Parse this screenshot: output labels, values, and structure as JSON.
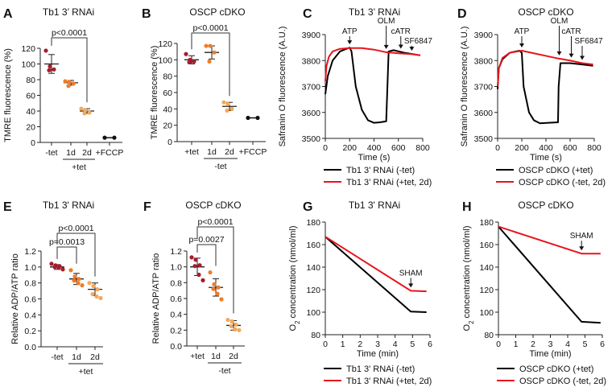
{
  "chart_data": [
    {
      "panel": "A",
      "type": "scatter",
      "title": "Tb1 3’ RNAi",
      "ylabel": "TMRE fluorescence (%)",
      "ylim": [
        0,
        120
      ],
      "yticks": [
        0,
        20,
        40,
        60,
        80,
        100,
        120
      ],
      "categories": [
        "-tet",
        "1d",
        "2d",
        "+FCCP"
      ],
      "group_label": {
        "text": "+tet",
        "span": [
          1,
          2
        ]
      },
      "groups": [
        {
          "values": [
            117,
            97,
            93,
            92
          ],
          "mean": 100,
          "sd": 12,
          "color": "#a51d2d"
        },
        {
          "values": [
            78,
            77,
            75,
            72
          ],
          "mean": 76,
          "sd": 3,
          "color": "#f07c28"
        },
        {
          "values": [
            43,
            41,
            38,
            37
          ],
          "mean": 40,
          "sd": 3,
          "color": "#f5a85a"
        },
        {
          "values": [
            6,
            6
          ],
          "mean": 6,
          "sd": 0,
          "color": "#111111",
          "connected": true
        }
      ],
      "significance": [
        {
          "from": 0,
          "to": 2,
          "label": "p<0.0001"
        }
      ]
    },
    {
      "panel": "B",
      "type": "scatter",
      "title": "OSCP cDKO",
      "ylabel": "TMRE fluorescence (%)",
      "ylim": [
        0,
        120
      ],
      "yticks": [
        0,
        20,
        40,
        60,
        80,
        100,
        120
      ],
      "categories": [
        "+tet",
        "1d",
        "2d",
        "+FCCP"
      ],
      "group_label": {
        "text": "-tet",
        "span": [
          1,
          2
        ]
      },
      "groups": [
        {
          "values": [
            107,
            100,
            98,
            97
          ],
          "mean": 100,
          "sd": 5,
          "color": "#a51d2d"
        },
        {
          "values": [
            117,
            117,
            109,
            98
          ],
          "mean": 109,
          "sd": 8,
          "color": "#f07c28"
        },
        {
          "values": [
            48,
            46,
            40,
            38
          ],
          "mean": 43,
          "sd": 5,
          "color": "#f5a85a"
        },
        {
          "values": [
            29,
            29
          ],
          "mean": 29,
          "sd": 0,
          "color": "#111111",
          "connected": true
        }
      ],
      "significance": [
        {
          "from": 0,
          "to": 2,
          "label": "p<0.0001"
        }
      ]
    },
    {
      "panel": "C",
      "type": "line",
      "title": "Tb1 3’ RNAi",
      "xlabel": "Time (s)",
      "ylabel": "Safranin O fluorescence (A.U.)",
      "xlim": [
        0,
        800
      ],
      "xticks": [
        0,
        200,
        400,
        600,
        800
      ],
      "ylim": [
        3500,
        3900
      ],
      "yticks": [
        3500,
        3600,
        3700,
        3800,
        3900
      ],
      "series": [
        {
          "name": "Tb1 3’ RNAi (-tet)",
          "color": "#000000",
          "x": [
            0,
            20,
            60,
            120,
            200,
            215,
            250,
            300,
            350,
            400,
            450,
            500,
            510,
            520,
            560,
            650,
            780
          ],
          "y": [
            3670,
            3740,
            3800,
            3835,
            3850,
            3835,
            3700,
            3610,
            3570,
            3560,
            3562,
            3566,
            3700,
            3835,
            3840,
            3830,
            3820
          ]
        },
        {
          "name": "Tb1 3’ RNAi (+tet, 2d)",
          "color": "#e8141c",
          "x": [
            0,
            10,
            30,
            60,
            120,
            200,
            300,
            400,
            500,
            600,
            700,
            780
          ],
          "y": [
            3720,
            3780,
            3815,
            3835,
            3845,
            3848,
            3848,
            3842,
            3832,
            3828,
            3825,
            3820
          ]
        }
      ],
      "annotations": [
        {
          "x": 200,
          "label": "ATP"
        },
        {
          "x": 500,
          "label": "OLM"
        },
        {
          "x": 620,
          "label": "cATR"
        },
        {
          "x": 710,
          "label": "SF6847"
        }
      ]
    },
    {
      "panel": "D",
      "type": "line",
      "title": "OSCP cDKO",
      "xlabel": "Time (s)",
      "ylabel": "Safranin O fluorescence (A.U.)",
      "xlim": [
        0,
        800
      ],
      "xticks": [
        0,
        200,
        400,
        600,
        800
      ],
      "ylim": [
        3500,
        3900
      ],
      "yticks": [
        3500,
        3600,
        3700,
        3800,
        3900
      ],
      "series": [
        {
          "name": "OSCP cDKO (+tet)",
          "color": "#000000",
          "x": [
            0,
            10,
            40,
            100,
            180,
            200,
            215,
            260,
            300,
            350,
            420,
            500,
            505,
            520,
            600,
            700,
            790
          ],
          "y": [
            3690,
            3770,
            3805,
            3830,
            3838,
            3830,
            3700,
            3600,
            3570,
            3558,
            3560,
            3562,
            3700,
            3790,
            3790,
            3785,
            3780
          ]
        },
        {
          "name": "OSCP cDKO (-tet, 2d)",
          "color": "#e8141c",
          "x": [
            0,
            10,
            40,
            100,
            200,
            300,
            400,
            500,
            600,
            700,
            790
          ],
          "y": [
            3700,
            3770,
            3810,
            3830,
            3838,
            3828,
            3818,
            3808,
            3800,
            3790,
            3785
          ]
        }
      ],
      "annotations": [
        {
          "x": 200,
          "label": "ATP"
        },
        {
          "x": 510,
          "label": "OLM"
        },
        {
          "x": 610,
          "label": "cATR"
        },
        {
          "x": 700,
          "label": "SF6847"
        }
      ]
    },
    {
      "panel": "E",
      "type": "scatter",
      "title": "Tb1 3' RNAi",
      "ylabel": "Relative ADP/ATP ratio",
      "ylim": [
        0,
        1.2
      ],
      "yticks": [
        0.0,
        0.2,
        0.4,
        0.6,
        0.8,
        1.0,
        1.2
      ],
      "categories": [
        "-tet",
        "1d",
        "2d"
      ],
      "group_label": {
        "text": "+tet",
        "span": [
          1,
          2
        ]
      },
      "groups": [
        {
          "values": [
            1.04,
            1.02,
            1.01,
            1.0,
            0.99,
            0.97
          ],
          "mean": 1.0,
          "sd": 0.03,
          "color": "#a51d2d"
        },
        {
          "values": [
            0.96,
            0.88,
            0.85,
            0.83,
            0.8,
            0.77
          ],
          "mean": 0.85,
          "sd": 0.07,
          "color": "#f07c28"
        },
        {
          "values": [
            0.8,
            0.76,
            0.72,
            0.66,
            0.63,
            0.61
          ],
          "mean": 0.72,
          "sd": 0.08,
          "color": "#f5a85a"
        }
      ],
      "significance": [
        {
          "from": 0,
          "to": 1,
          "label": "p=0.0013"
        },
        {
          "from": 0,
          "to": 2,
          "label": "p<0.0001"
        }
      ]
    },
    {
      "panel": "F",
      "type": "scatter",
      "title": "OSCP cDKO",
      "ylabel": "Relative ADP/ATP ratio",
      "ylim": [
        0,
        1.2
      ],
      "yticks": [
        0.0,
        0.2,
        0.4,
        0.6,
        0.8,
        1.0,
        1.2
      ],
      "categories": [
        "+tet",
        "1d",
        "2d"
      ],
      "group_label": {
        "text": "-tet",
        "span": [
          1,
          2
        ]
      },
      "groups": [
        {
          "values": [
            1.12,
            1.09,
            1.02,
            1.01,
            0.9,
            0.83
          ],
          "mean": 1.0,
          "sd": 0.11,
          "color": "#a51d2d"
        },
        {
          "values": [
            0.93,
            0.78,
            0.74,
            0.72,
            0.66,
            0.59
          ],
          "mean": 0.74,
          "sd": 0.11,
          "color": "#f07c28"
        },
        {
          "values": [
            0.33,
            0.31,
            0.27,
            0.25,
            0.21,
            0.2
          ],
          "mean": 0.26,
          "sd": 0.06,
          "color": "#f5a85a"
        }
      ],
      "significance": [
        {
          "from": 0,
          "to": 1,
          "label": "p=0.0027"
        },
        {
          "from": 0,
          "to": 2,
          "label": "p<0.0001"
        }
      ]
    },
    {
      "panel": "G",
      "type": "line",
      "title": "Tb1 3' RNAi",
      "xlabel": "Time (min)",
      "ylabel": "O2 concentration (nmol/ml)",
      "xlim": [
        0,
        6
      ],
      "xticks": [
        0,
        1,
        2,
        3,
        4,
        5,
        6
      ],
      "ylim": [
        80,
        180
      ],
      "yticks": [
        80,
        100,
        120,
        140,
        160,
        180
      ],
      "series": [
        {
          "name": "Tb1 3' RNAi (-tet)",
          "color": "#000000",
          "x": [
            0,
            4.9,
            5.8
          ],
          "y": [
            167,
            100.5,
            100
          ]
        },
        {
          "name": "Tb1 3' RNAi (+tet, 2d)",
          "color": "#e8141c",
          "x": [
            0,
            4.9,
            5.8
          ],
          "y": [
            167,
            119,
            118.5
          ]
        }
      ],
      "annotations": [
        {
          "x": 4.9,
          "label": "SHAM",
          "y": 119
        }
      ]
    },
    {
      "panel": "H",
      "type": "line",
      "title": "OSCP cDKO",
      "xlabel": "Time (min)",
      "ylabel": "O2 concentration (nmol/ml)",
      "xlim": [
        0,
        6
      ],
      "xticks": [
        0,
        1,
        2,
        3,
        4,
        5,
        6
      ],
      "ylim": [
        80,
        180
      ],
      "yticks": [
        80,
        100,
        120,
        140,
        160,
        180
      ],
      "series": [
        {
          "name": "OSCP cDKO (+tet)",
          "color": "#000000",
          "x": [
            0,
            4.8,
            5.9
          ],
          "y": [
            176,
            91.5,
            90.5
          ]
        },
        {
          "name": "OSCP cDKO (-tet, 2d)",
          "color": "#e8141c",
          "x": [
            0,
            4.8,
            5.9
          ],
          "y": [
            176,
            152,
            152
          ]
        }
      ],
      "annotations": [
        {
          "x": 4.8,
          "label": "SHAM",
          "y": 152
        }
      ]
    }
  ]
}
